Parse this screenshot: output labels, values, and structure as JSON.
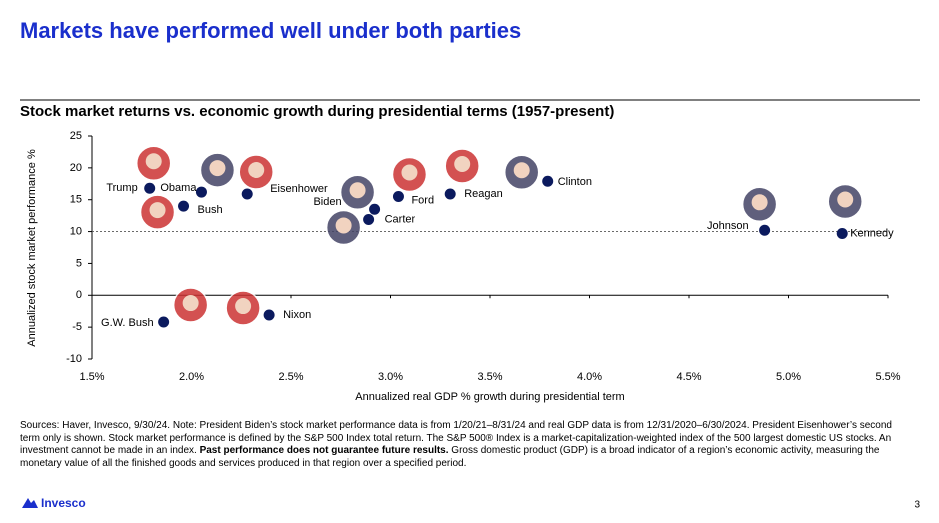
{
  "title": "Markets have performed well under both parties",
  "chart_data": {
    "type": "scatter",
    "title": "Stock market returns vs. economic growth during presidential terms (1957-present)",
    "x_label": "Annualized real GDP % growth during presidential term",
    "y_label": "Annualized stock market performance %",
    "labels": [
      "Trump",
      "Obama",
      "Bush",
      "Eisenhower",
      "Biden",
      "Carter",
      "Ford",
      "Reagan",
      "Clinton",
      "Johnson",
      "Kennedy",
      "G.W. Bush",
      "Nixon"
    ],
    "x": [
      1.79,
      2.05,
      1.96,
      2.28,
      2.92,
      2.89,
      3.04,
      3.3,
      3.79,
      4.88,
      5.27,
      1.86,
      2.39
    ],
    "values": [
      16.8,
      16.2,
      14.0,
      15.9,
      13.5,
      11.9,
      15.5,
      15.9,
      17.9,
      10.2,
      9.7,
      -4.2,
      -3.1
    ],
    "color": "#0b1a5e",
    "reference_line": 10,
    "xlim": [
      1.5,
      5.5
    ],
    "xticks": [
      {
        "value": 1.5,
        "label": "1.5%"
      },
      {
        "value": 2.0,
        "label": "2.0%"
      },
      {
        "value": 2.5,
        "label": "2.5%"
      },
      {
        "value": 3.0,
        "label": "3.0%"
      },
      {
        "value": 3.5,
        "label": "3.5%"
      },
      {
        "value": 4.0,
        "label": "4.0%"
      },
      {
        "value": 4.5,
        "label": "4.5%"
      },
      {
        "value": 5.0,
        "label": "5.0%"
      },
      {
        "value": 5.5,
        "label": "5.5%"
      }
    ],
    "ylim": [
      -10,
      25
    ],
    "yticks": [
      -10,
      -5,
      0,
      5,
      10,
      15,
      20,
      25
    ]
  },
  "footnote": {
    "text": "Sources: Haver, Invesco, 9/30/24. Note: President Biden’s stock market performance data is from 1/20/21–8/31/24 and real GDP data is from 12/31/2020–6/30/2024. President Eisenhower’s second term only is shown. Stock market performance is defined by the S&P 500 Index total return. The S&P 500® Index is a market-capitalization-weighted index of the 500 largest domestic US stocks. An investment cannot be made in an index.",
    "bold": "Past performance does not guarantee future results.",
    "text2": "Gross domestic product (GDP) is a broad indicator of a region’s economic activity, measuring the monetary value of all the finished goods and services produced in that region over a specified period."
  },
  "logo": "Invesco",
  "page_number": "3"
}
